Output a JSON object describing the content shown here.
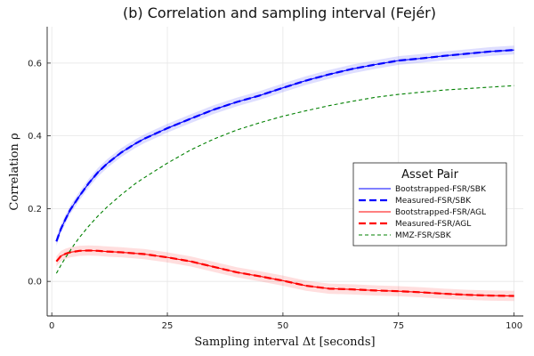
{
  "chart_data": {
    "type": "line",
    "title": "(b) Correlation and sampling interval (Fejér)",
    "xlabel": "Sampling interval Δt [seconds]",
    "ylabel": "Correlation ρ",
    "xlim": [
      -1,
      102
    ],
    "ylim": [
      -0.095,
      0.7
    ],
    "xticks": [
      0,
      25,
      50,
      75,
      100
    ],
    "yticks": [
      0.0,
      0.2,
      0.4,
      0.6
    ],
    "ytick_labels": [
      "0.0",
      "0.2",
      "0.4",
      "0.6"
    ],
    "grid": true,
    "legend": {
      "title": "Asset Pair",
      "placement": "center-right"
    },
    "x": [
      1,
      2,
      3,
      4,
      5,
      6,
      8,
      10,
      12,
      15,
      18,
      20,
      25,
      30,
      35,
      40,
      45,
      50,
      55,
      60,
      65,
      70,
      75,
      80,
      85,
      90,
      95,
      100
    ],
    "series": [
      {
        "name": "Bootstrapped-FSR/SBK",
        "color": "#0000ff",
        "dash": "solid",
        "band_half_width": 0.012,
        "values": [
          0.11,
          0.145,
          0.172,
          0.197,
          0.216,
          0.235,
          0.27,
          0.3,
          0.324,
          0.354,
          0.378,
          0.392,
          0.421,
          0.447,
          0.472,
          0.493,
          0.511,
          0.532,
          0.552,
          0.569,
          0.584,
          0.596,
          0.607,
          0.613,
          0.62,
          0.626,
          0.632,
          0.636
        ]
      },
      {
        "name": "Measured-FSR/SBK",
        "color": "#0000ff",
        "dash": "dashed",
        "values": [
          0.11,
          0.145,
          0.172,
          0.197,
          0.216,
          0.235,
          0.27,
          0.3,
          0.324,
          0.354,
          0.378,
          0.392,
          0.421,
          0.447,
          0.472,
          0.493,
          0.511,
          0.532,
          0.552,
          0.569,
          0.584,
          0.596,
          0.607,
          0.613,
          0.62,
          0.626,
          0.632,
          0.636
        ]
      },
      {
        "name": "Bootstrapped-FSR/AGL",
        "color": "#ff0000",
        "dash": "solid",
        "band_half_width": 0.014,
        "values": [
          0.055,
          0.07,
          0.076,
          0.08,
          0.082,
          0.084,
          0.085,
          0.084,
          0.082,
          0.08,
          0.077,
          0.075,
          0.066,
          0.055,
          0.04,
          0.025,
          0.014,
          0.002,
          -0.012,
          -0.02,
          -0.022,
          -0.025,
          -0.027,
          -0.03,
          -0.034,
          -0.037,
          -0.039,
          -0.04
        ]
      },
      {
        "name": "Measured-FSR/AGL",
        "color": "#ff0000",
        "dash": "dashed",
        "values": [
          0.055,
          0.07,
          0.076,
          0.08,
          0.082,
          0.084,
          0.085,
          0.084,
          0.082,
          0.08,
          0.077,
          0.075,
          0.066,
          0.055,
          0.04,
          0.025,
          0.014,
          0.002,
          -0.012,
          -0.02,
          -0.022,
          -0.025,
          -0.027,
          -0.03,
          -0.034,
          -0.037,
          -0.039,
          -0.04
        ]
      },
      {
        "name": "MMZ-FSR/SBK",
        "color": "#008000",
        "dash": "short-dash",
        "values": [
          0.022,
          0.045,
          0.066,
          0.085,
          0.104,
          0.121,
          0.152,
          0.18,
          0.205,
          0.238,
          0.268,
          0.285,
          0.325,
          0.361,
          0.391,
          0.416,
          0.436,
          0.454,
          0.469,
          0.483,
          0.495,
          0.506,
          0.514,
          0.52,
          0.526,
          0.53,
          0.534,
          0.538
        ]
      }
    ]
  }
}
